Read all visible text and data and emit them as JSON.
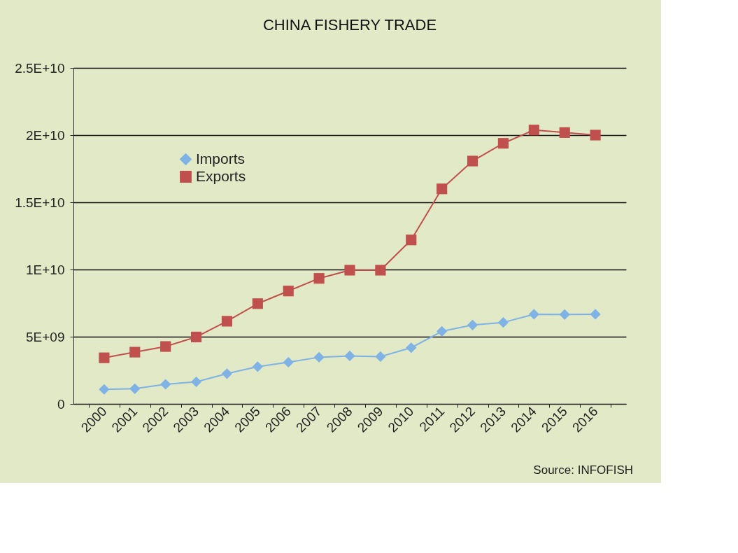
{
  "chart_data": {
    "type": "line",
    "title": "CHINA FISHERY TRADE",
    "categories": [
      "2000",
      "2001",
      "2002",
      "2003",
      "2004",
      "2005",
      "2006",
      "2007",
      "2008",
      "2009",
      "2010",
      "2011",
      "2012",
      "2013",
      "2014",
      "2015",
      "2016"
    ],
    "series": [
      {
        "name": "Imports",
        "color": "#7fb2e5",
        "marker": "diamond",
        "values": [
          1080000000.0,
          1130000000.0,
          1460000000.0,
          1640000000.0,
          2250000000.0,
          2770000000.0,
          3100000000.0,
          3470000000.0,
          3570000000.0,
          3520000000.0,
          4180000000.0,
          5400000000.0,
          5870000000.0,
          6060000000.0,
          6670000000.0,
          6650000000.0,
          6670000000.0
        ]
      },
      {
        "name": "Exports",
        "color": "#c0504d",
        "marker": "square",
        "values": [
          3430000000.0,
          3850000000.0,
          4270000000.0,
          4980000000.0,
          6150000000.0,
          7460000000.0,
          8400000000.0,
          9340000000.0,
          9950000000.0,
          9950000000.0,
          12200000000.0,
          16000000000.0,
          18070000000.0,
          19390000000.0,
          20380000000.0,
          20190000000.0,
          20000000000.0
        ]
      }
    ],
    "ylim": [
      0,
      25000000000.0
    ],
    "yticks": [
      0,
      {
        "value": 5000000000.0,
        "label": "5E+09"
      },
      {
        "value": 10000000000.0,
        "label": "1E+10"
      },
      {
        "value": 15000000000.0,
        "label": "1.5E+10"
      },
      {
        "value": 20000000000.0,
        "label": "2E+10"
      },
      {
        "value": 25000000000.0,
        "label": "2.5E+10"
      }
    ],
    "grid": "y",
    "legend": "top left",
    "line_style": "solid",
    "annotations": [
      "Source: INFOFISH"
    ]
  }
}
